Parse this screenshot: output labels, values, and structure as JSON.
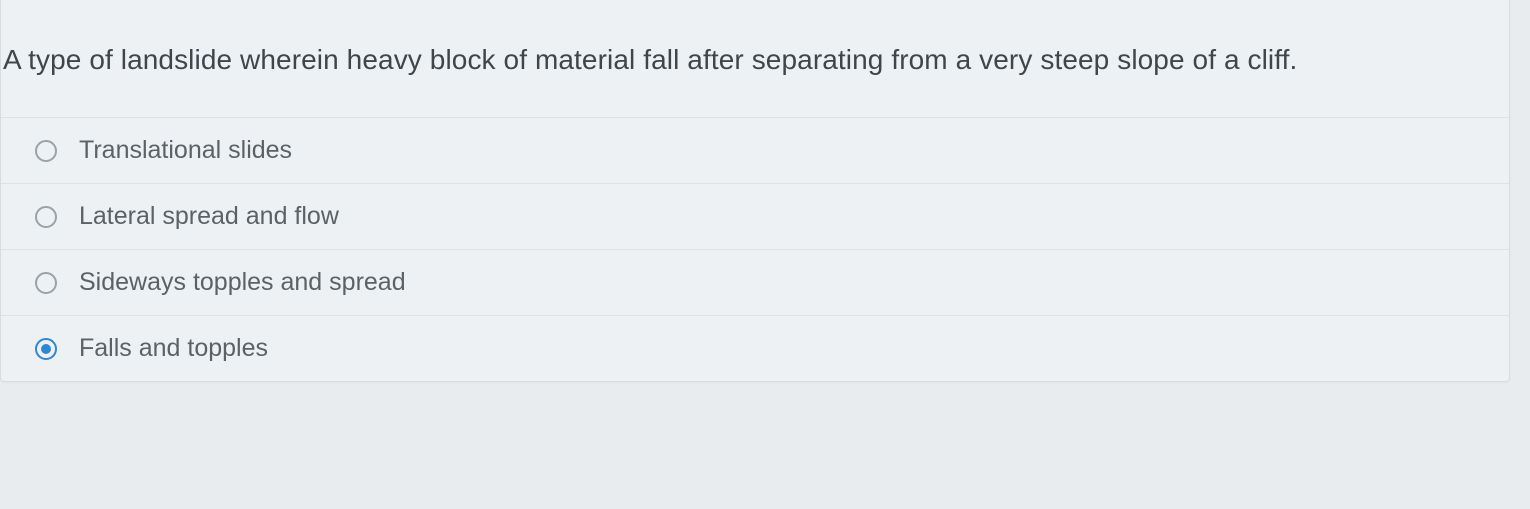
{
  "question": {
    "text": "A type of landslide wherein heavy block of material fall after separating from a very steep slope of a cliff.",
    "text_color": "#3e464c",
    "text_fontsize": 28
  },
  "options": [
    {
      "label": "Translational slides",
      "selected": false
    },
    {
      "label": "Lateral spread and flow",
      "selected": false
    },
    {
      "label": "Sideways topples and spread",
      "selected": false
    },
    {
      "label": "Falls and topples",
      "selected": true
    }
  ],
  "style": {
    "background_color": "#eef1f3",
    "divider_color": "#dde1e3",
    "option_text_color": "#5a6268",
    "option_fontsize": 25,
    "radio_border_color": "#9aa2a7",
    "radio_selected_color": "#2f87d0"
  }
}
